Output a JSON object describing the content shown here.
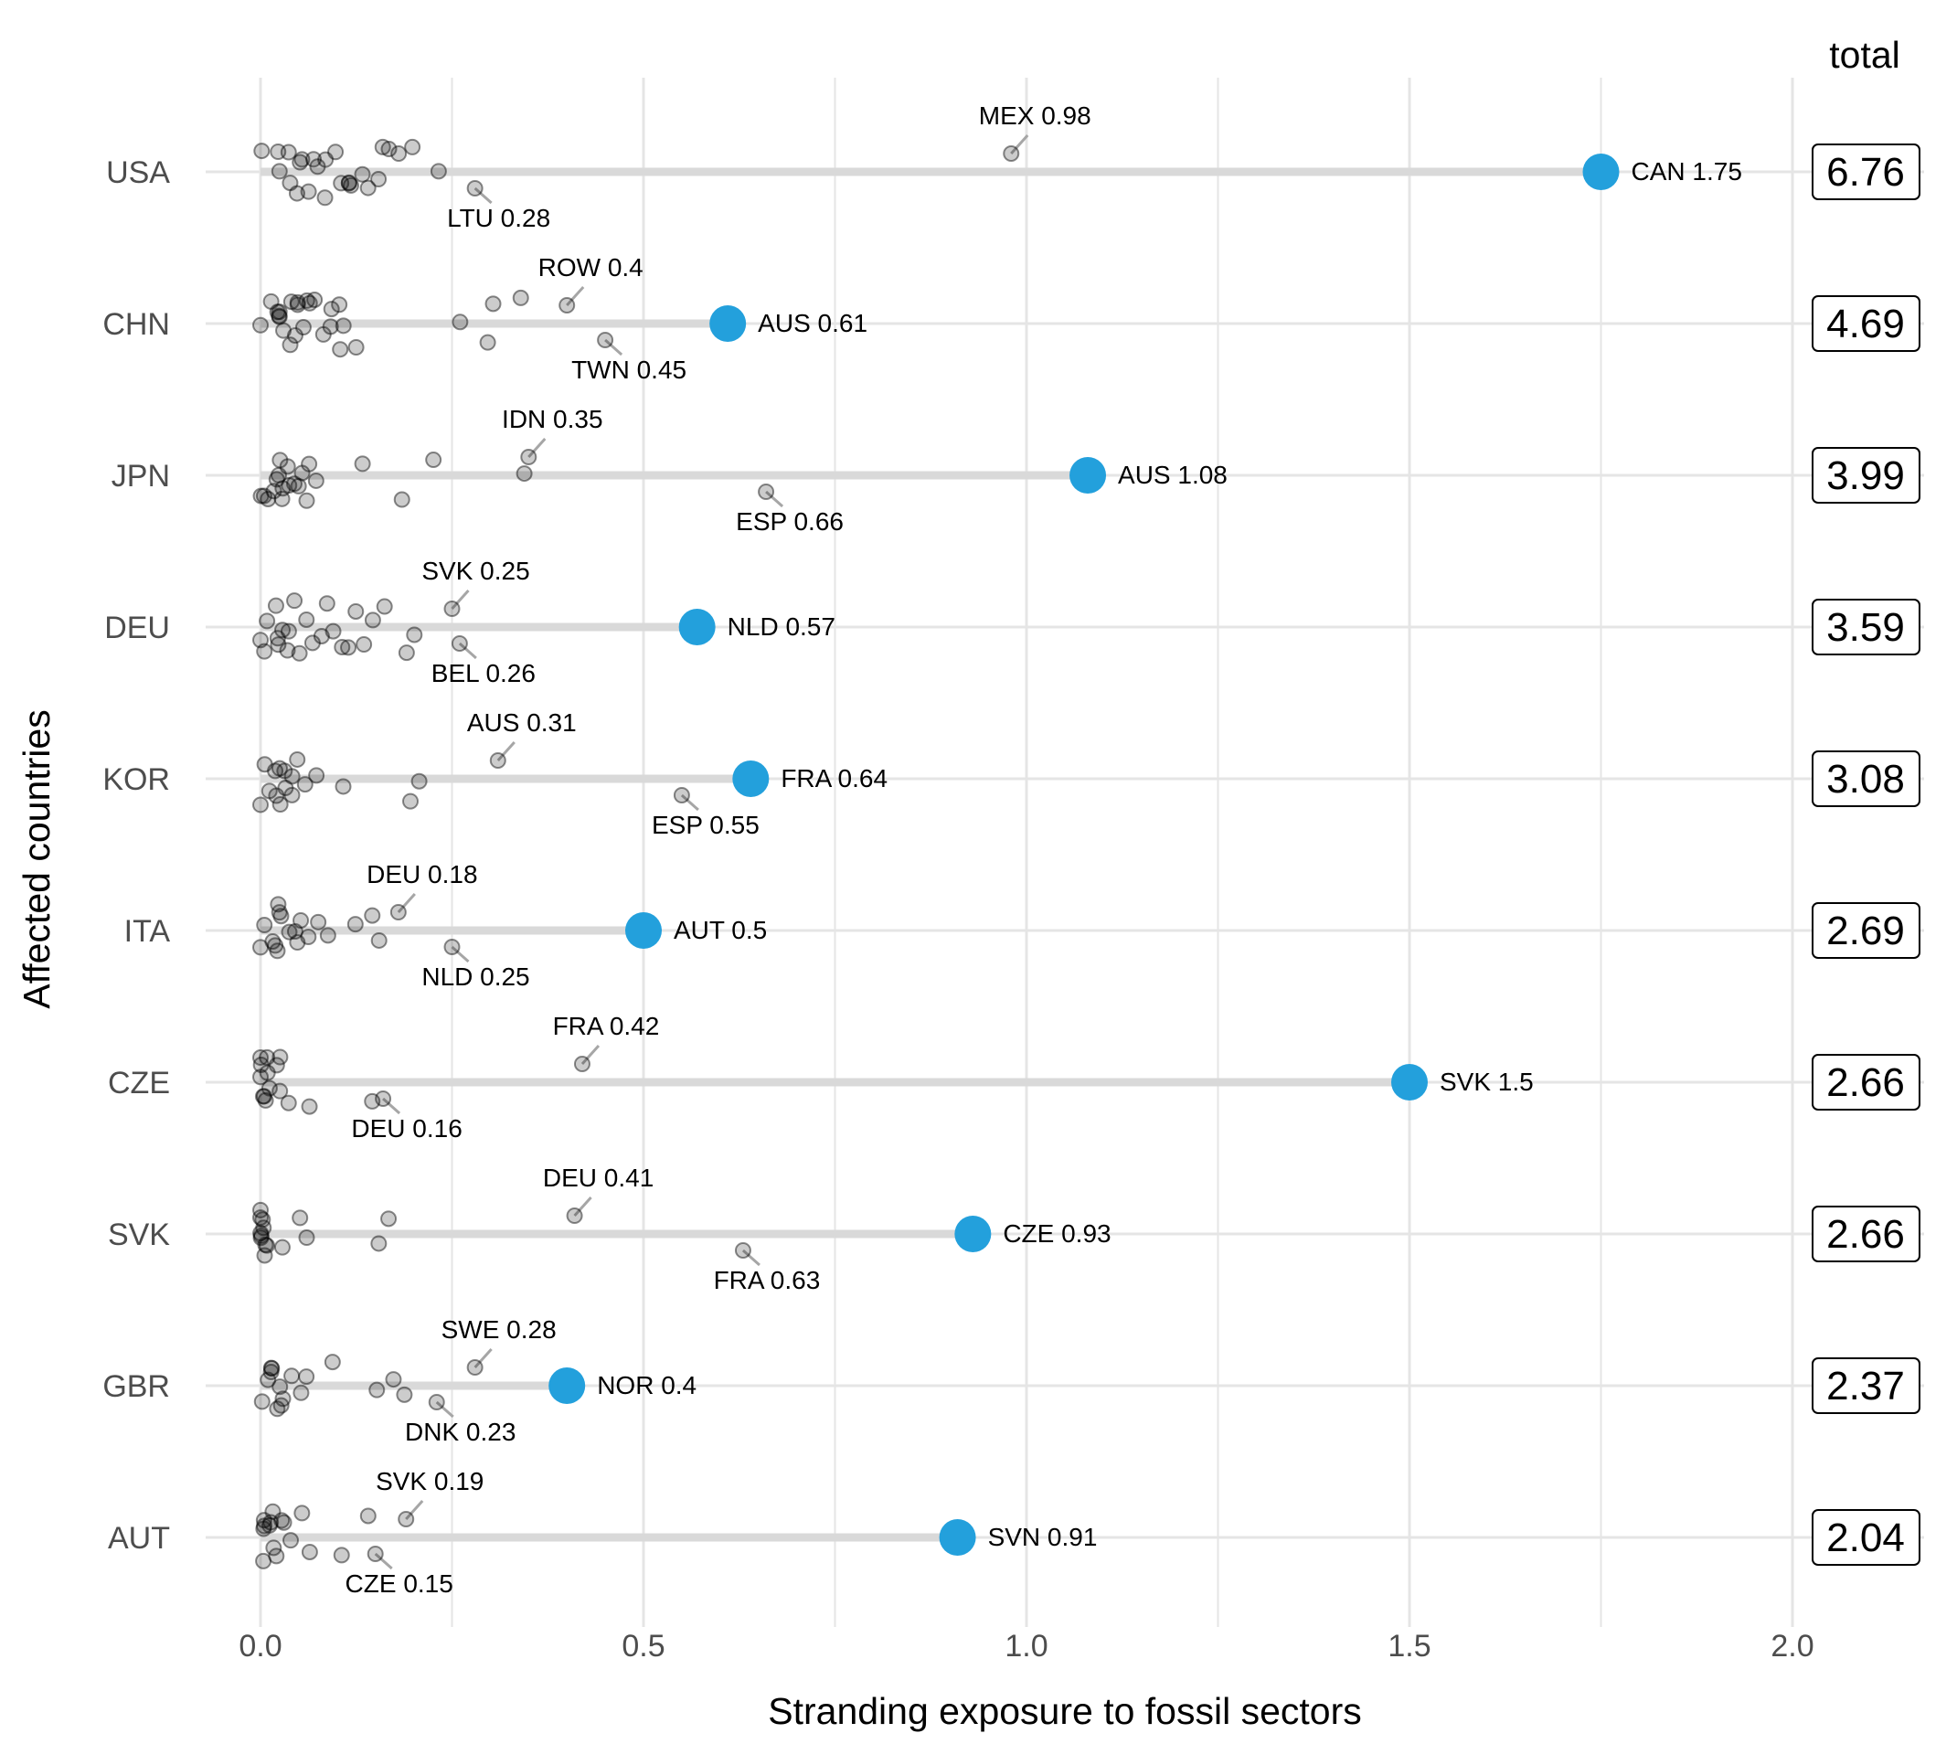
{
  "chart_data": {
    "type": "scatter",
    "xlabel": "Stranding exposure to fossil sectors",
    "ylabel": "Affected countries",
    "xlim": [
      -0.1,
      2.2
    ],
    "x_ticks": [
      0.0,
      0.5,
      1.0,
      1.5,
      2.0
    ],
    "x_tick_labels": [
      "0.0",
      "0.5",
      "1.0",
      "1.5",
      "2.0"
    ],
    "total_header": "total",
    "colors": {
      "highlight": "#23a0dc",
      "bar": "#d9d9d9",
      "grid": "#e5e5e5",
      "point": "#000000"
    },
    "rows": [
      {
        "country": "USA",
        "total": "6.76",
        "max": {
          "code": "CAN",
          "value": 1.75,
          "label": "CAN 1.75"
        },
        "labeled": [
          {
            "label": "MEX 0.98",
            "value": 0.98
          },
          {
            "label": "LTU 0.28",
            "value": 0.28
          }
        ],
        "points": [
          0.0,
          0.02,
          0.03,
          0.04,
          0.05,
          0.05,
          0.06,
          0.06,
          0.07,
          0.08,
          0.09,
          0.1,
          0.1,
          0.11,
          0.12,
          0.13,
          0.14,
          0.15,
          0.16,
          0.17,
          0.18,
          0.2,
          0.23,
          0.04,
          0.07,
          0.12
        ]
      },
      {
        "country": "CHN",
        "total": "4.69",
        "max": {
          "code": "AUS",
          "value": 0.61,
          "label": "AUS 0.61"
        },
        "labeled": [
          {
            "label": "TWN 0.45",
            "value": 0.45
          },
          {
            "label": "ROW 0.4",
            "value": 0.4
          }
        ],
        "points": [
          0.0,
          0.01,
          0.02,
          0.02,
          0.03,
          0.03,
          0.04,
          0.04,
          0.05,
          0.05,
          0.05,
          0.06,
          0.06,
          0.07,
          0.08,
          0.09,
          0.1,
          0.11,
          0.11,
          0.12,
          0.26,
          0.3,
          0.3,
          0.34,
          0.03,
          0.06,
          0.09
        ]
      },
      {
        "country": "JPN",
        "total": "3.99",
        "max": {
          "code": "AUS",
          "value": 1.08,
          "label": "AUS 1.08"
        },
        "labeled": [
          {
            "label": "IDN 0.35",
            "value": 0.35
          },
          {
            "label": "ESP 0.66",
            "value": 0.66
          }
        ],
        "points": [
          0.0,
          0.01,
          0.01,
          0.02,
          0.02,
          0.03,
          0.03,
          0.03,
          0.04,
          0.04,
          0.05,
          0.05,
          0.06,
          0.06,
          0.07,
          0.13,
          0.18,
          0.23,
          0.35,
          0.02,
          0.04
        ]
      },
      {
        "country": "DEU",
        "total": "3.59",
        "max": {
          "code": "NLD",
          "value": 0.57,
          "label": "NLD 0.57"
        },
        "labeled": [
          {
            "label": "BEL 0.26",
            "value": 0.26
          },
          {
            "label": "SVK 0.25",
            "value": 0.25
          }
        ],
        "points": [
          0.0,
          0.01,
          0.01,
          0.02,
          0.02,
          0.03,
          0.03,
          0.04,
          0.05,
          0.06,
          0.07,
          0.08,
          0.09,
          0.1,
          0.11,
          0.12,
          0.13,
          0.14,
          0.15,
          0.16,
          0.19,
          0.2,
          0.02,
          0.05
        ]
      },
      {
        "country": "KOR",
        "total": "3.08",
        "max": {
          "code": "FRA",
          "value": 0.64,
          "label": "FRA 0.64"
        },
        "labeled": [
          {
            "label": "AUS 0.31",
            "value": 0.31
          },
          {
            "label": "ESP 0.55",
            "value": 0.55
          }
        ],
        "points": [
          0.0,
          0.01,
          0.01,
          0.02,
          0.02,
          0.03,
          0.03,
          0.04,
          0.04,
          0.05,
          0.06,
          0.07,
          0.11,
          0.2,
          0.21,
          0.02,
          0.03
        ]
      },
      {
        "country": "ITA",
        "total": "2.69",
        "max": {
          "code": "AUT",
          "value": 0.5,
          "label": "AUT 0.5"
        },
        "labeled": [
          {
            "label": "NLD 0.25",
            "value": 0.25
          },
          {
            "label": "DEU 0.18",
            "value": 0.18
          }
        ],
        "points": [
          0.0,
          0.01,
          0.01,
          0.02,
          0.02,
          0.03,
          0.03,
          0.04,
          0.05,
          0.05,
          0.06,
          0.07,
          0.09,
          0.12,
          0.14,
          0.15,
          0.02,
          0.04
        ]
      },
      {
        "country": "CZE",
        "total": "2.66",
        "max": {
          "code": "SVK",
          "value": 1.5,
          "label": "SVK 1.5"
        },
        "labeled": [
          {
            "label": "DEU 0.16",
            "value": 0.16
          },
          {
            "label": "FRA 0.42",
            "value": 0.42
          }
        ],
        "points": [
          0.0,
          0.0,
          0.0,
          0.01,
          0.01,
          0.01,
          0.01,
          0.02,
          0.02,
          0.03,
          0.04,
          0.06,
          0.15,
          0.0,
          0.01
        ]
      },
      {
        "country": "SVK",
        "total": "2.66",
        "max": {
          "code": "CZE",
          "value": 0.93,
          "label": "CZE 0.93"
        },
        "labeled": [
          {
            "label": "DEU 0.41",
            "value": 0.41
          },
          {
            "label": "FRA 0.63",
            "value": 0.63
          }
        ],
        "points": [
          0.0,
          0.0,
          0.0,
          0.0,
          0.0,
          0.01,
          0.01,
          0.01,
          0.03,
          0.05,
          0.06,
          0.16,
          0.17,
          0.0,
          0.0
        ]
      },
      {
        "country": "GBR",
        "total": "2.37",
        "max": {
          "code": "NOR",
          "value": 0.4,
          "label": "NOR 0.4"
        },
        "labeled": [
          {
            "label": "DNK 0.23",
            "value": 0.23
          },
          {
            "label": "SWE 0.28",
            "value": 0.28
          }
        ],
        "points": [
          0.0,
          0.01,
          0.01,
          0.02,
          0.02,
          0.03,
          0.03,
          0.04,
          0.05,
          0.06,
          0.09,
          0.15,
          0.17,
          0.19,
          0.02,
          0.03
        ]
      },
      {
        "country": "AUT",
        "total": "2.04",
        "max": {
          "code": "SVN",
          "value": 0.91,
          "label": "SVN 0.91"
        },
        "labeled": [
          {
            "label": "SVK 0.19",
            "value": 0.19
          },
          {
            "label": "CZE 0.15",
            "value": 0.15
          }
        ],
        "points": [
          0.0,
          0.0,
          0.01,
          0.01,
          0.01,
          0.02,
          0.02,
          0.03,
          0.03,
          0.04,
          0.05,
          0.06,
          0.11,
          0.14,
          0.0,
          0.02
        ]
      }
    ]
  }
}
